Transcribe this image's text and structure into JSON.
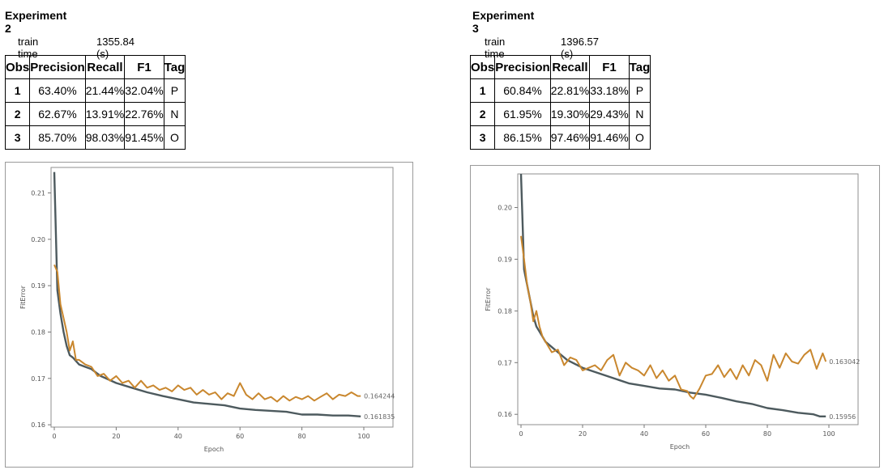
{
  "experiments": [
    {
      "title": "Experiment 2",
      "train_time_label": "train time",
      "train_time_value": "1355.84 (s)",
      "table": {
        "headers": [
          "Obs",
          "Precision",
          "Recall",
          "F1",
          "Tag"
        ],
        "rows": [
          [
            "1",
            "63.40%",
            "21.44%",
            "32.04%",
            "P"
          ],
          [
            "2",
            "62.67%",
            "13.91%",
            "22.76%",
            "N"
          ],
          [
            "3",
            "85.70%",
            "98.03%",
            "91.45%",
            "O"
          ]
        ]
      }
    },
    {
      "title": "Experiment 3",
      "train_time_label": "train time",
      "train_time_value": "1396.57 (s)",
      "table": {
        "headers": [
          "Obs",
          "Precision",
          "Recall",
          "F1",
          "Tag"
        ],
        "rows": [
          [
            "1",
            "60.84%",
            "22.81%",
            "33.18%",
            "P"
          ],
          [
            "2",
            "61.95%",
            "19.30%",
            "29.43%",
            "N"
          ],
          [
            "3",
            "86.15%",
            "97.46%",
            "91.46%",
            "O"
          ]
        ]
      }
    }
  ],
  "chart_data": [
    {
      "type": "line",
      "xlabel": "Epoch",
      "ylabel": "FitError",
      "xlim": [
        0,
        100
      ],
      "ylim": [
        0.1595,
        0.2155
      ],
      "xticks": [
        0,
        20,
        40,
        60,
        80,
        100
      ],
      "yticks": [
        0.16,
        0.17,
        0.18,
        0.19,
        0.2,
        0.21
      ],
      "ytick_labels": [
        "0.16",
        "0.17",
        "0.18",
        "0.19",
        "0.20",
        "0.21"
      ],
      "grid": false,
      "colors": {
        "gray": "#4d5a5e",
        "orange": "#c9872e"
      },
      "series": [
        {
          "color": "gray",
          "end_label": "0.161835",
          "x": [
            0,
            1,
            2,
            3,
            4,
            5,
            6,
            8,
            10,
            12,
            15,
            20,
            25,
            30,
            35,
            40,
            45,
            50,
            55,
            60,
            65,
            70,
            75,
            80,
            85,
            90,
            95,
            99
          ],
          "y": [
            0.2145,
            0.189,
            0.184,
            0.18,
            0.177,
            0.175,
            0.1745,
            0.173,
            0.1725,
            0.172,
            0.1705,
            0.169,
            0.168,
            0.167,
            0.1662,
            0.1655,
            0.1648,
            0.1645,
            0.1642,
            0.1635,
            0.1632,
            0.163,
            0.1628,
            0.1622,
            0.1622,
            0.162,
            0.162,
            0.1618
          ]
        },
        {
          "color": "orange",
          "end_label": "0.164244",
          "x": [
            0,
            1,
            2,
            3,
            4,
            5,
            6,
            7,
            8,
            10,
            12,
            14,
            16,
            18,
            20,
            22,
            24,
            26,
            28,
            30,
            32,
            34,
            36,
            38,
            40,
            42,
            44,
            46,
            48,
            50,
            52,
            54,
            56,
            58,
            60,
            62,
            64,
            66,
            68,
            70,
            72,
            74,
            76,
            78,
            80,
            82,
            84,
            86,
            88,
            90,
            92,
            94,
            96,
            98,
            99
          ],
          "y": [
            0.1945,
            0.193,
            0.186,
            0.183,
            0.18,
            0.176,
            0.178,
            0.174,
            0.174,
            0.173,
            0.1725,
            0.1705,
            0.171,
            0.1695,
            0.1705,
            0.169,
            0.1695,
            0.168,
            0.1695,
            0.168,
            0.1685,
            0.1675,
            0.168,
            0.1672,
            0.1685,
            0.1675,
            0.168,
            0.1665,
            0.1675,
            0.1665,
            0.167,
            0.1655,
            0.1668,
            0.1662,
            0.169,
            0.1665,
            0.1655,
            0.1668,
            0.1655,
            0.166,
            0.165,
            0.1662,
            0.1652,
            0.166,
            0.1655,
            0.1662,
            0.1652,
            0.166,
            0.1668,
            0.1655,
            0.1665,
            0.1662,
            0.167,
            0.1662,
            0.1662
          ]
        }
      ]
    },
    {
      "type": "line",
      "xlabel": "Epoch",
      "ylabel": "FitError",
      "xlim": [
        0,
        100
      ],
      "ylim": [
        0.158,
        0.2065
      ],
      "xticks": [
        0,
        20,
        40,
        60,
        80,
        100
      ],
      "yticks": [
        0.16,
        0.17,
        0.18,
        0.19,
        0.2
      ],
      "ytick_labels": [
        "0.16",
        "0.17",
        "0.18",
        "0.19",
        "0.20"
      ],
      "grid": false,
      "colors": {
        "gray": "#4d5a5e",
        "orange": "#c9872e"
      },
      "series": [
        {
          "color": "gray",
          "end_label": "0.15956",
          "x": [
            0,
            1,
            2,
            3,
            4,
            5,
            6,
            8,
            10,
            12,
            15,
            20,
            25,
            30,
            35,
            40,
            45,
            50,
            55,
            60,
            65,
            70,
            75,
            80,
            85,
            90,
            95,
            97,
            99
          ],
          "y": [
            0.2065,
            0.188,
            0.185,
            0.182,
            0.179,
            0.177,
            0.176,
            0.174,
            0.173,
            0.172,
            0.1705,
            0.169,
            0.168,
            0.167,
            0.166,
            0.1655,
            0.165,
            0.1648,
            0.1642,
            0.1638,
            0.1632,
            0.1625,
            0.162,
            0.1612,
            0.1608,
            0.1603,
            0.16,
            0.1596,
            0.1596
          ]
        },
        {
          "color": "orange",
          "end_label": "0.163042",
          "x": [
            0,
            1,
            2,
            3,
            4,
            5,
            6,
            7,
            8,
            10,
            12,
            14,
            16,
            18,
            20,
            22,
            24,
            26,
            28,
            30,
            32,
            34,
            36,
            38,
            40,
            42,
            44,
            46,
            48,
            50,
            52,
            54,
            55,
            56,
            58,
            60,
            62,
            64,
            66,
            68,
            70,
            72,
            74,
            76,
            78,
            80,
            82,
            84,
            86,
            88,
            90,
            92,
            94,
            96,
            98,
            99
          ],
          "y": [
            0.1945,
            0.19,
            0.185,
            0.182,
            0.178,
            0.18,
            0.177,
            0.175,
            0.174,
            0.172,
            0.1725,
            0.1695,
            0.171,
            0.1705,
            0.1685,
            0.169,
            0.1695,
            0.1685,
            0.1705,
            0.1715,
            0.1675,
            0.17,
            0.169,
            0.1685,
            0.1675,
            0.1695,
            0.167,
            0.1685,
            0.1665,
            0.1675,
            0.1648,
            0.1645,
            0.1635,
            0.163,
            0.165,
            0.1675,
            0.1678,
            0.1695,
            0.1672,
            0.1688,
            0.1668,
            0.1695,
            0.1675,
            0.1705,
            0.1695,
            0.1665,
            0.1715,
            0.169,
            0.1718,
            0.1702,
            0.1698,
            0.1715,
            0.1725,
            0.1688,
            0.1718,
            0.1702
          ]
        }
      ]
    }
  ]
}
